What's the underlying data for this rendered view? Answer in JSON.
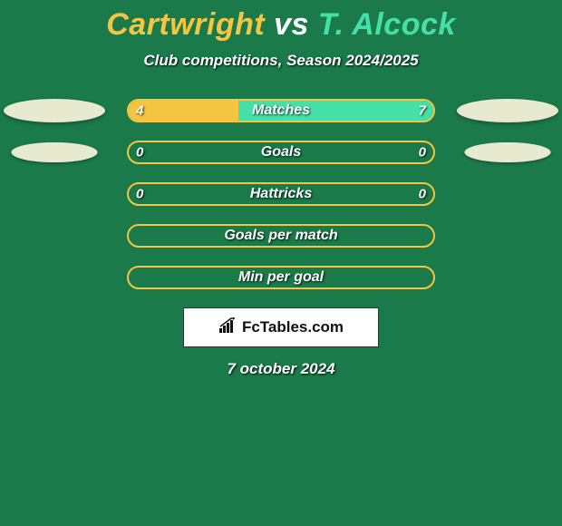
{
  "background_color": "#1a7a4a",
  "title": {
    "player1": "Cartwright",
    "vs": "vs",
    "player2": "T. Alcock",
    "player1_color": "#f5c542",
    "vs_color": "#ffffff",
    "player2_color": "#45e0a8"
  },
  "subtitle": "Club competitions, Season 2024/2025",
  "player1_accent": "#f5c542",
  "player2_accent": "#45e0a8",
  "ellipse_color": "#e8ead0",
  "bar_border_color": "#f5c542",
  "stats": [
    {
      "label": "Matches",
      "left_value": "4",
      "right_value": "7",
      "left_pct": 36,
      "right_pct": 64,
      "show_ellipses": true,
      "ellipse_left_scale": 1.0,
      "ellipse_right_scale": 1.0
    },
    {
      "label": "Goals",
      "left_value": "0",
      "right_value": "0",
      "left_pct": 50,
      "right_pct": 50,
      "show_ellipses": true,
      "ellipse_left_scale": 0.85,
      "ellipse_right_scale": 0.85
    },
    {
      "label": "Hattricks",
      "left_value": "0",
      "right_value": "0",
      "left_pct": 50,
      "right_pct": 50,
      "show_ellipses": false
    },
    {
      "label": "Goals per match",
      "left_value": "",
      "right_value": "",
      "left_pct": 50,
      "right_pct": 50,
      "show_ellipses": false
    },
    {
      "label": "Min per goal",
      "left_value": "",
      "right_value": "",
      "left_pct": 50,
      "right_pct": 50,
      "show_ellipses": false
    }
  ],
  "brand": "FcTables.com",
  "date": "7 october 2024"
}
